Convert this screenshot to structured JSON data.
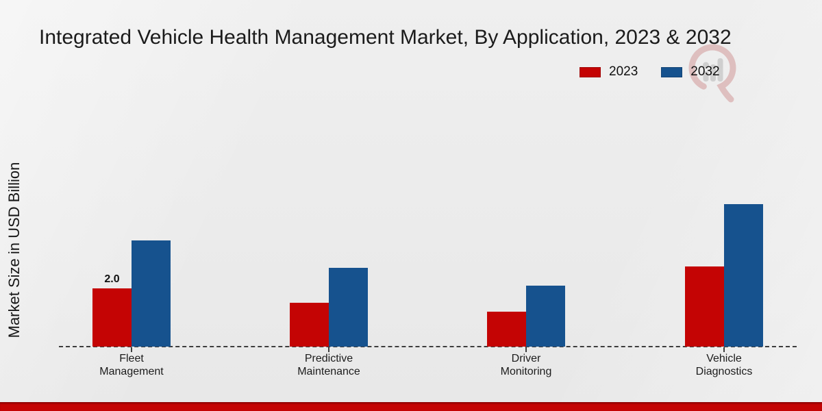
{
  "title": "Integrated Vehicle Health Management Market, By Application, 2023 & 2032",
  "y_axis_label": "Market Size in USD Billion",
  "legend": {
    "items": [
      {
        "label": "2023",
        "color": "#C40404"
      },
      {
        "label": "2032",
        "color": "#16528E"
      }
    ]
  },
  "watermark": {
    "name": "mrfr-logo"
  },
  "footer": {
    "bar_color": "#C40404"
  },
  "chart_data": {
    "type": "bar",
    "categories": [
      "Fleet Management",
      "Predictive Maintenance",
      "Driver Monitoring",
      "Vehicle Diagnostics"
    ],
    "series": [
      {
        "name": "2023",
        "color": "#C40404",
        "values": [
          2.0,
          1.5,
          1.2,
          2.75
        ]
      },
      {
        "name": "2032",
        "color": "#16528E",
        "values": [
          3.65,
          2.7,
          2.1,
          4.9
        ]
      }
    ],
    "data_labels": [
      {
        "series_index": 0,
        "category_index": 0,
        "text": "2.0"
      }
    ],
    "xlabel": "",
    "ylabel": "Market Size in USD Billion",
    "ylim": [
      0,
      5.5
    ],
    "grid": false,
    "legend_position": "top-right",
    "axis_style": "dashed-baseline"
  }
}
